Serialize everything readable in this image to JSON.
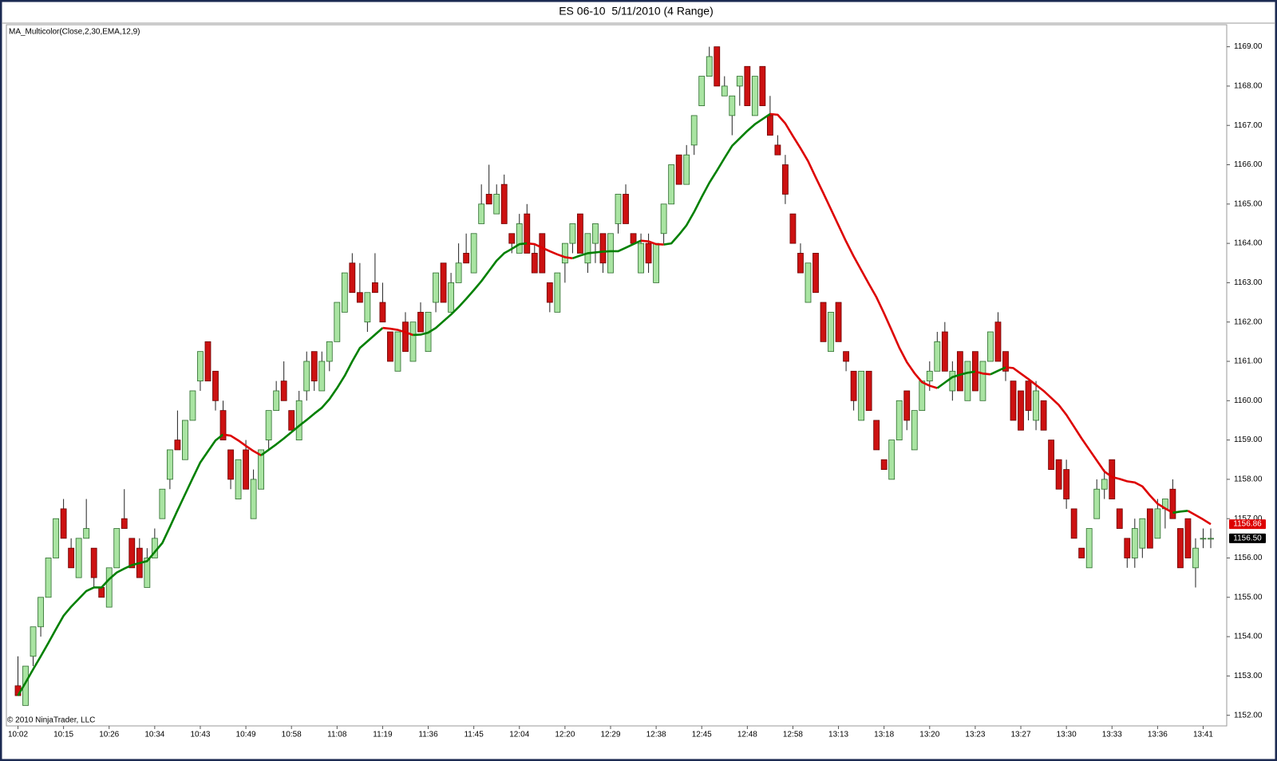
{
  "chart_data": {
    "type": "candlestick",
    "title": "ES 06-10  5/11/2010 (4 Range)",
    "indicator_label": "MA_Multicolor(Close,2,30,EMA,12,9)",
    "copyright": "© 2010 NinjaTrader, LLC",
    "categories": [
      "10:02",
      null,
      null,
      null,
      null,
      null,
      "10:15",
      null,
      null,
      null,
      null,
      null,
      "10:26",
      null,
      null,
      null,
      null,
      null,
      "10:34",
      null,
      null,
      null,
      null,
      null,
      "10:43",
      null,
      null,
      null,
      null,
      null,
      "10:49",
      null,
      null,
      null,
      null,
      null,
      "10:58",
      null,
      null,
      null,
      null,
      null,
      "11:08",
      null,
      null,
      null,
      null,
      null,
      "11:19",
      null,
      null,
      null,
      null,
      null,
      "11:36",
      null,
      null,
      null,
      null,
      null,
      "11:45",
      null,
      null,
      null,
      null,
      null,
      "12:04",
      null,
      null,
      null,
      null,
      null,
      "12:20",
      null,
      null,
      null,
      null,
      null,
      "12:29",
      null,
      null,
      null,
      null,
      null,
      "12:38",
      null,
      null,
      null,
      null,
      null,
      "12:45",
      null,
      null,
      null,
      null,
      null,
      "12:48",
      null,
      null,
      null,
      null,
      null,
      "12:58",
      null,
      null,
      null,
      null,
      null,
      "13:13",
      null,
      null,
      null,
      null,
      null,
      "13:18",
      null,
      null,
      null,
      null,
      null,
      "13:20",
      null,
      null,
      null,
      null,
      null,
      "13:23",
      null,
      null,
      null,
      null,
      null,
      "13:27",
      null,
      null,
      null,
      null,
      null,
      "13:30",
      null,
      null,
      null,
      null,
      null,
      "13:33",
      null,
      null,
      null,
      null,
      null,
      "13:36",
      null,
      null,
      null,
      null,
      null,
      "13:41",
      null
    ],
    "candles": [
      [
        1152.75,
        1153.5,
        1152.5,
        1152.5
      ],
      [
        1152.25,
        1153.25,
        1152.25,
        1153.25
      ],
      [
        1153.5,
        1154.25,
        1153.25,
        1154.25
      ],
      [
        1154.25,
        1155,
        1154,
        1155
      ],
      [
        1155,
        1156,
        1155,
        1156
      ],
      [
        1156,
        1157,
        1156,
        1157
      ],
      [
        1157.25,
        1157.5,
        1156.5,
        1156.5
      ],
      [
        1156.25,
        1156.5,
        1155.75,
        1155.75
      ],
      [
        1155.5,
        1156.5,
        1155.5,
        1156.5
      ],
      [
        1156.5,
        1157.5,
        1156.5,
        1156.75
      ],
      [
        1156.25,
        1156.25,
        1155.25,
        1155.5
      ],
      [
        1155.25,
        1155.25,
        1155,
        1155
      ],
      [
        1154.75,
        1155.75,
        1154.75,
        1155.75
      ],
      [
        1155.75,
        1156.75,
        1155.75,
        1156.75
      ],
      [
        1157,
        1157.75,
        1156.75,
        1156.75
      ],
      [
        1156.5,
        1156.5,
        1155.75,
        1155.75
      ],
      [
        1156.25,
        1156.5,
        1155.5,
        1155.5
      ],
      [
        1155.25,
        1156.25,
        1155.25,
        1156
      ],
      [
        1156,
        1156.75,
        1156,
        1156.5
      ],
      [
        1157,
        1157.75,
        1157,
        1157.75
      ],
      [
        1158,
        1158.75,
        1157.75,
        1158.75
      ],
      [
        1159,
        1159.75,
        1158.75,
        1158.75
      ],
      [
        1158.5,
        1159.5,
        1158.5,
        1159.5
      ],
      [
        1159.5,
        1160.25,
        1159.5,
        1160.25
      ],
      [
        1160.5,
        1161.25,
        1160.25,
        1161.25
      ],
      [
        1161.5,
        1161.5,
        1160.5,
        1160.5
      ],
      [
        1160.75,
        1160.75,
        1159.75,
        1160
      ],
      [
        1159.75,
        1160,
        1159,
        1159
      ],
      [
        1158.75,
        1158.75,
        1157.75,
        1158
      ],
      [
        1157.5,
        1158.5,
        1157.5,
        1158.5
      ],
      [
        1158.75,
        1159,
        1157.75,
        1157.75
      ],
      [
        1157,
        1158.25,
        1157,
        1158
      ],
      [
        1157.75,
        1158.75,
        1157.75,
        1158.75
      ],
      [
        1159,
        1159.75,
        1158.75,
        1159.75
      ],
      [
        1159.75,
        1160.5,
        1159.75,
        1160.25
      ],
      [
        1160.5,
        1161,
        1160,
        1160
      ],
      [
        1159.75,
        1159.75,
        1159.25,
        1159.25
      ],
      [
        1159,
        1160.25,
        1159,
        1160
      ],
      [
        1160.25,
        1161.25,
        1160,
        1161
      ],
      [
        1161.25,
        1161.25,
        1160.25,
        1160.5
      ],
      [
        1160.25,
        1161.25,
        1160.25,
        1161
      ],
      [
        1161,
        1161.5,
        1160.75,
        1161.5
      ],
      [
        1161.5,
        1162.5,
        1161.5,
        1162.5
      ],
      [
        1162.25,
        1163.25,
        1162.25,
        1163.25
      ],
      [
        1163.5,
        1163.75,
        1162.75,
        1162.75
      ],
      [
        1162.75,
        1163.5,
        1162.5,
        1162.5
      ],
      [
        1162,
        1162.75,
        1161.75,
        1162.75
      ],
      [
        1163,
        1163.75,
        1162.75,
        1162.75
      ],
      [
        1162.5,
        1163,
        1162,
        1162
      ],
      [
        1161.75,
        1161.75,
        1161,
        1161
      ],
      [
        1160.75,
        1161.75,
        1160.75,
        1161.75
      ],
      [
        1162,
        1162.25,
        1161.25,
        1161.25
      ],
      [
        1161,
        1162,
        1161,
        1162
      ],
      [
        1162.25,
        1162.5,
        1161.75,
        1161.75
      ],
      [
        1161.25,
        1162.25,
        1161.25,
        1162.25
      ],
      [
        1162.5,
        1163.25,
        1162.25,
        1163.25
      ],
      [
        1163.5,
        1163.5,
        1162.5,
        1162.5
      ],
      [
        1162.25,
        1163.25,
        1162.25,
        1163
      ],
      [
        1163,
        1164,
        1163,
        1163.5
      ],
      [
        1163.75,
        1164.25,
        1163.5,
        1163.5
      ],
      [
        1163.25,
        1164.25,
        1163.25,
        1164.25
      ],
      [
        1164.5,
        1165.5,
        1164.5,
        1165
      ],
      [
        1165.25,
        1166,
        1165,
        1165
      ],
      [
        1164.75,
        1165.5,
        1164.75,
        1165.25
      ],
      [
        1165.5,
        1165.75,
        1164.5,
        1164.5
      ],
      [
        1164.25,
        1164.25,
        1163.75,
        1164
      ],
      [
        1163.75,
        1164.75,
        1163.75,
        1164.5
      ],
      [
        1164.75,
        1165,
        1163.75,
        1163.75
      ],
      [
        1163.75,
        1164,
        1163.25,
        1163.25
      ],
      [
        1164.25,
        1164.25,
        1163.25,
        1163.25
      ],
      [
        1163,
        1163,
        1162.25,
        1162.5
      ],
      [
        1162.25,
        1163.25,
        1162.25,
        1163.25
      ],
      [
        1163.5,
        1164,
        1163,
        1164
      ],
      [
        1164,
        1164.5,
        1163.75,
        1164.5
      ],
      [
        1164.75,
        1164.75,
        1163.75,
        1163.75
      ],
      [
        1163.5,
        1164.25,
        1163.25,
        1164.25
      ],
      [
        1164,
        1164.5,
        1163.5,
        1164.5
      ],
      [
        1164.25,
        1164.25,
        1163.25,
        1163.5
      ],
      [
        1163.25,
        1164.25,
        1163.25,
        1164.25
      ],
      [
        1164.5,
        1165.25,
        1164.25,
        1165.25
      ],
      [
        1165.25,
        1165.5,
        1164.5,
        1164.5
      ],
      [
        1164.25,
        1164.25,
        1164,
        1164
      ],
      [
        1163.25,
        1164.25,
        1163.25,
        1164
      ],
      [
        1164,
        1164.25,
        1163.25,
        1163.5
      ],
      [
        1163,
        1164,
        1163,
        1164
      ],
      [
        1164.25,
        1165,
        1164,
        1165
      ],
      [
        1165,
        1166,
        1165,
        1166
      ],
      [
        1166.25,
        1166.25,
        1165.5,
        1165.5
      ],
      [
        1165.5,
        1166.5,
        1165.5,
        1166.25
      ],
      [
        1166.5,
        1167.25,
        1166.25,
        1167.25
      ],
      [
        1167.5,
        1168.25,
        1167.5,
        1168.25
      ],
      [
        1168.25,
        1169,
        1168.25,
        1168.75
      ],
      [
        1169,
        1169,
        1168,
        1168
      ],
      [
        1167.75,
        1168.25,
        1167.75,
        1168
      ],
      [
        1167.25,
        1167.75,
        1166.75,
        1167.75
      ],
      [
        1168,
        1168.25,
        1167.5,
        1168.25
      ],
      [
        1168.5,
        1168.5,
        1167.5,
        1167.5
      ],
      [
        1167.25,
        1168.25,
        1167.25,
        1168.25
      ],
      [
        1168.5,
        1168.5,
        1167.5,
        1167.5
      ],
      [
        1167.25,
        1167.75,
        1166.75,
        1166.75
      ],
      [
        1166.5,
        1166.75,
        1166.25,
        1166.25
      ],
      [
        1166,
        1166.25,
        1165,
        1165.25
      ],
      [
        1164.75,
        1164.75,
        1164,
        1164
      ],
      [
        1163.75,
        1164,
        1163.25,
        1163.25
      ],
      [
        1162.5,
        1163.5,
        1162.5,
        1163.5
      ],
      [
        1163.75,
        1163.75,
        1162.75,
        1162.75
      ],
      [
        1162.5,
        1162.5,
        1161.5,
        1161.5
      ],
      [
        1161.25,
        1162.25,
        1161.25,
        1162.25
      ],
      [
        1162.5,
        1162.5,
        1161.5,
        1161.5
      ],
      [
        1161.25,
        1161.25,
        1160.75,
        1161
      ],
      [
        1160.75,
        1160.75,
        1159.75,
        1160
      ],
      [
        1159.5,
        1160.75,
        1159.5,
        1160.75
      ],
      [
        1160.75,
        1160.75,
        1159.75,
        1159.75
      ],
      [
        1159.5,
        1159.5,
        1158.75,
        1158.75
      ],
      [
        1158.5,
        1158.5,
        1158.25,
        1158.25
      ],
      [
        1158,
        1159,
        1158,
        1159
      ],
      [
        1159,
        1160,
        1159,
        1160
      ],
      [
        1160.25,
        1160.25,
        1159.25,
        1159.5
      ],
      [
        1158.75,
        1159.75,
        1158.75,
        1159.75
      ],
      [
        1159.75,
        1160.5,
        1159.75,
        1160.5
      ],
      [
        1160.5,
        1161,
        1160.25,
        1160.75
      ],
      [
        1160.75,
        1161.75,
        1160.75,
        1161.5
      ],
      [
        1161.75,
        1162,
        1160.75,
        1160.75
      ],
      [
        1160.25,
        1161,
        1160,
        1160.75
      ],
      [
        1161.25,
        1161.25,
        1160.25,
        1160.25
      ],
      [
        1160,
        1161,
        1160,
        1161
      ],
      [
        1161.25,
        1161.25,
        1160.25,
        1160.25
      ],
      [
        1160,
        1161,
        1160,
        1161
      ],
      [
        1161,
        1161.75,
        1161,
        1161.75
      ],
      [
        1162,
        1162.25,
        1161,
        1161
      ],
      [
        1161.25,
        1161.25,
        1160.5,
        1160.75
      ],
      [
        1160.5,
        1160.5,
        1159.5,
        1159.5
      ],
      [
        1160.25,
        1160.25,
        1159.25,
        1159.25
      ],
      [
        1160.5,
        1160.5,
        1159.5,
        1159.75
      ],
      [
        1159.5,
        1160.5,
        1159.25,
        1160.25
      ],
      [
        1160,
        1160,
        1159.25,
        1159.25
      ],
      [
        1159,
        1159,
        1158.25,
        1158.25
      ],
      [
        1158.5,
        1158.5,
        1157.75,
        1157.75
      ],
      [
        1158.25,
        1158.5,
        1157.25,
        1157.5
      ],
      [
        1157.25,
        1157.25,
        1156.5,
        1156.5
      ],
      [
        1156.25,
        1156.25,
        1156,
        1156
      ],
      [
        1155.75,
        1156.75,
        1155.75,
        1156.75
      ],
      [
        1157,
        1158,
        1157,
        1157.75
      ],
      [
        1157.75,
        1158.25,
        1157.5,
        1158
      ],
      [
        1158.5,
        1158.5,
        1157.5,
        1157.5
      ],
      [
        1157.25,
        1157.25,
        1156.75,
        1156.75
      ],
      [
        1156.5,
        1156.5,
        1155.75,
        1156
      ],
      [
        1156,
        1157,
        1155.75,
        1156.75
      ],
      [
        1156.25,
        1157,
        1156,
        1157
      ],
      [
        1157.25,
        1157.25,
        1156.25,
        1156.25
      ],
      [
        1156.5,
        1157.5,
        1156.5,
        1157.25
      ],
      [
        1157.25,
        1157.5,
        1156.75,
        1157.5
      ],
      [
        1157.75,
        1158,
        1157,
        1157
      ],
      [
        1156.75,
        1156.75,
        1155.75,
        1155.75
      ],
      [
        1157,
        1157,
        1156,
        1156
      ],
      [
        1155.75,
        1156.5,
        1155.25,
        1156.25
      ],
      [
        1156.5,
        1156.75,
        1156.25,
        1156.5
      ],
      [
        1156.5,
        1156.75,
        1156.25,
        1156.5
      ]
    ],
    "up_color": "#a9e4a2",
    "down_color": "#cc1111",
    "ma": {
      "values": [
        1152.5,
        1152.83,
        1153.17,
        1153.5,
        1153.84,
        1154.19,
        1154.53,
        1154.76,
        1154.96,
        1155.16,
        1155.25,
        1155.25,
        1155.46,
        1155.63,
        1155.73,
        1155.82,
        1155.87,
        1155.92,
        1156.15,
        1156.38,
        1156.79,
        1157.21,
        1157.62,
        1158.03,
        1158.43,
        1158.71,
        1158.99,
        1159.14,
        1159.11,
        1158.99,
        1158.85,
        1158.72,
        1158.61,
        1158.75,
        1158.89,
        1159.04,
        1159.2,
        1159.36,
        1159.51,
        1159.67,
        1159.82,
        1160.04,
        1160.32,
        1160.63,
        1161.0,
        1161.34,
        1161.51,
        1161.68,
        1161.85,
        1161.83,
        1161.8,
        1161.74,
        1161.67,
        1161.68,
        1161.73,
        1161.85,
        1162.02,
        1162.19,
        1162.38,
        1162.59,
        1162.81,
        1163.04,
        1163.3,
        1163.56,
        1163.75,
        1163.86,
        1163.98,
        1164.0,
        1163.98,
        1163.89,
        1163.8,
        1163.72,
        1163.65,
        1163.62,
        1163.69,
        1163.75,
        1163.77,
        1163.79,
        1163.8,
        1163.8,
        1163.89,
        1163.98,
        1164.07,
        1164.05,
        1163.98,
        1163.97,
        1164.0,
        1164.22,
        1164.46,
        1164.8,
        1165.18,
        1165.54,
        1165.85,
        1166.17,
        1166.48,
        1166.67,
        1166.86,
        1167.03,
        1167.16,
        1167.29,
        1167.27,
        1167.05,
        1166.73,
        1166.42,
        1166.09,
        1165.68,
        1165.28,
        1164.87,
        1164.46,
        1164.05,
        1163.67,
        1163.32,
        1162.97,
        1162.63,
        1162.22,
        1161.79,
        1161.35,
        1160.98,
        1160.7,
        1160.47,
        1160.38,
        1160.32,
        1160.46,
        1160.6,
        1160.66,
        1160.71,
        1160.74,
        1160.69,
        1160.67,
        1160.76,
        1160.85,
        1160.83,
        1160.69,
        1160.55,
        1160.4,
        1160.25,
        1160.07,
        1159.89,
        1159.64,
        1159.34,
        1159.04,
        1158.76,
        1158.48,
        1158.2,
        1158.06,
        1158.01,
        1157.95,
        1157.92,
        1157.82,
        1157.59,
        1157.38,
        1157.26,
        1157.15,
        1157.18,
        1157.2,
        1157.09,
        1156.98,
        1156.86
      ],
      "up_color": "#008000",
      "down_color": "#dd0000"
    },
    "ylim": [
      1151.73,
      1169.56
    ],
    "yticks": [
      {
        "value": 1152,
        "label": "1152.00"
      },
      {
        "value": 1153,
        "label": "1153.00"
      },
      {
        "value": 1154,
        "label": "1154.00"
      },
      {
        "value": 1155,
        "label": "1155.00"
      },
      {
        "value": 1156,
        "label": "1156.00"
      },
      {
        "value": 1157,
        "label": "1157.00"
      },
      {
        "value": 1158,
        "label": "1158.00"
      },
      {
        "value": 1159,
        "label": "1159.00"
      },
      {
        "value": 1160,
        "label": "1160.00"
      },
      {
        "value": 1161,
        "label": "1161.00"
      },
      {
        "value": 1162,
        "label": "1162.00"
      },
      {
        "value": 1163,
        "label": "1163.00"
      },
      {
        "value": 1164,
        "label": "1164.00"
      },
      {
        "value": 1165,
        "label": "1165.00"
      },
      {
        "value": 1166,
        "label": "1166.00"
      },
      {
        "value": 1167,
        "label": "1167.00"
      },
      {
        "value": 1168,
        "label": "1168.00"
      },
      {
        "value": 1169,
        "label": "1169.00"
      }
    ],
    "price_markers": [
      {
        "value": 1156.86,
        "label": "1156.86",
        "color": "#dd0000"
      },
      {
        "value": 1156.5,
        "label": "1156.50",
        "color": "#000000"
      }
    ]
  }
}
